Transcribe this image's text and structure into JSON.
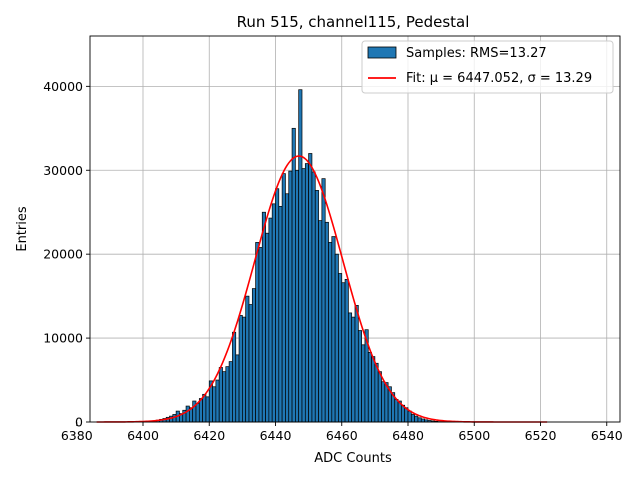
{
  "chart_data": {
    "type": "bar",
    "title": "Run 515, channel115, Pedestal",
    "xlabel": "ADC Counts",
    "ylabel": "Entries",
    "xlim": [
      6384,
      6544
    ],
    "ylim": [
      0,
      46000
    ],
    "xticks": [
      6380,
      6400,
      6420,
      6440,
      6460,
      6480,
      6500,
      6520,
      6540
    ],
    "yticks": [
      0,
      10000,
      20000,
      30000,
      40000
    ],
    "grid": true,
    "legend_position": "top-right",
    "colors": {
      "bars": "#1f77b4",
      "bar_edge": "#000000",
      "fit": "#ff0000",
      "grid": "#b0b0b0"
    },
    "series": [
      {
        "name": "Samples: RMS=13.27",
        "kind": "histogram",
        "bin_width": 1,
        "x": [
          6400,
          6401,
          6402,
          6403,
          6404,
          6405,
          6406,
          6407,
          6408,
          6409,
          6410,
          6411,
          6412,
          6413,
          6414,
          6415,
          6416,
          6417,
          6418,
          6419,
          6420,
          6421,
          6422,
          6423,
          6424,
          6425,
          6426,
          6427,
          6428,
          6429,
          6430,
          6431,
          6432,
          6433,
          6434,
          6435,
          6436,
          6437,
          6438,
          6439,
          6440,
          6441,
          6442,
          6443,
          6444,
          6445,
          6446,
          6447,
          6448,
          6449,
          6450,
          6451,
          6452,
          6453,
          6454,
          6455,
          6456,
          6457,
          6458,
          6459,
          6460,
          6461,
          6462,
          6463,
          6464,
          6465,
          6466,
          6467,
          6468,
          6469,
          6470,
          6471,
          6472,
          6473,
          6474,
          6475,
          6476,
          6477,
          6478,
          6479,
          6480,
          6481,
          6482,
          6483,
          6484,
          6485,
          6486,
          6487,
          6488,
          6489,
          6490,
          6491,
          6492,
          6493
        ],
        "values": [
          30,
          60,
          100,
          150,
          220,
          320,
          420,
          560,
          700,
          900,
          1300,
          1000,
          1400,
          1900,
          1700,
          2500,
          2200,
          2800,
          3300,
          3000,
          4900,
          4200,
          5000,
          6500,
          6000,
          6600,
          7200,
          10700,
          8000,
          12700,
          12500,
          15000,
          14000,
          15900,
          21400,
          20800,
          25000,
          22500,
          24300,
          26000,
          27800,
          25700,
          29600,
          27200,
          29900,
          35000,
          30000,
          39600,
          30200,
          30800,
          32000,
          29800,
          27600,
          24000,
          29000,
          23800,
          21400,
          22100,
          20000,
          17700,
          16600,
          17000,
          13000,
          12500,
          13900,
          10900,
          9200,
          11000,
          8300,
          7800,
          7000,
          6000,
          4800,
          4700,
          4200,
          3500,
          2700,
          2500,
          2000,
          1700,
          1300,
          900,
          700,
          500,
          360,
          260,
          180,
          120,
          80,
          50,
          30,
          20,
          12,
          6
        ]
      },
      {
        "name": "Fit: μ = 6447.052, σ = 13.29",
        "kind": "gaussian_fit",
        "mu": 6447.052,
        "sigma": 13.29,
        "amplitude": 31700,
        "x_range": [
          6386,
          6522
        ]
      }
    ]
  }
}
